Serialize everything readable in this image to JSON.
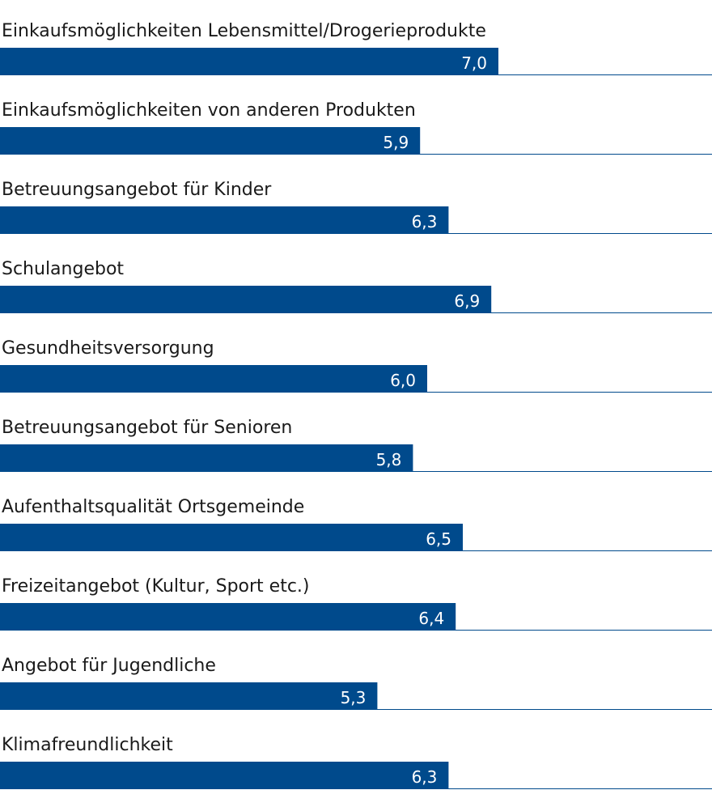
{
  "chart_data": {
    "type": "bar",
    "orientation": "horizontal",
    "title": "",
    "xlabel": "",
    "ylabel": "",
    "xlim": [
      0,
      10
    ],
    "grid": false,
    "bar_color": "#004a8c",
    "baseline_color": "#004a8c",
    "categories": [
      "Einkaufsmöglichkeiten Lebensmittel/Drogerieprodukte",
      "Einkaufsmöglichkeiten von anderen Produkten",
      "Betreuungsangebot für Kinder",
      "Schulangebot",
      "Gesundheitsversorgung",
      "Betreuungsangebot für Senioren",
      "Aufenthaltsqualität Ortsgemeinde",
      "Freizeitangebot (Kultur, Sport etc.)",
      "Angebot für Jugendliche",
      "Klimafreundlichkeit"
    ],
    "values": [
      7.0,
      5.9,
      6.3,
      6.9,
      6.0,
      5.8,
      6.5,
      6.4,
      5.3,
      6.3
    ],
    "value_labels": [
      "7,0",
      "5,9",
      "6,3",
      "6,9",
      "6,0",
      "5,8",
      "6,5",
      "6,4",
      "5,3",
      "6,3"
    ]
  }
}
